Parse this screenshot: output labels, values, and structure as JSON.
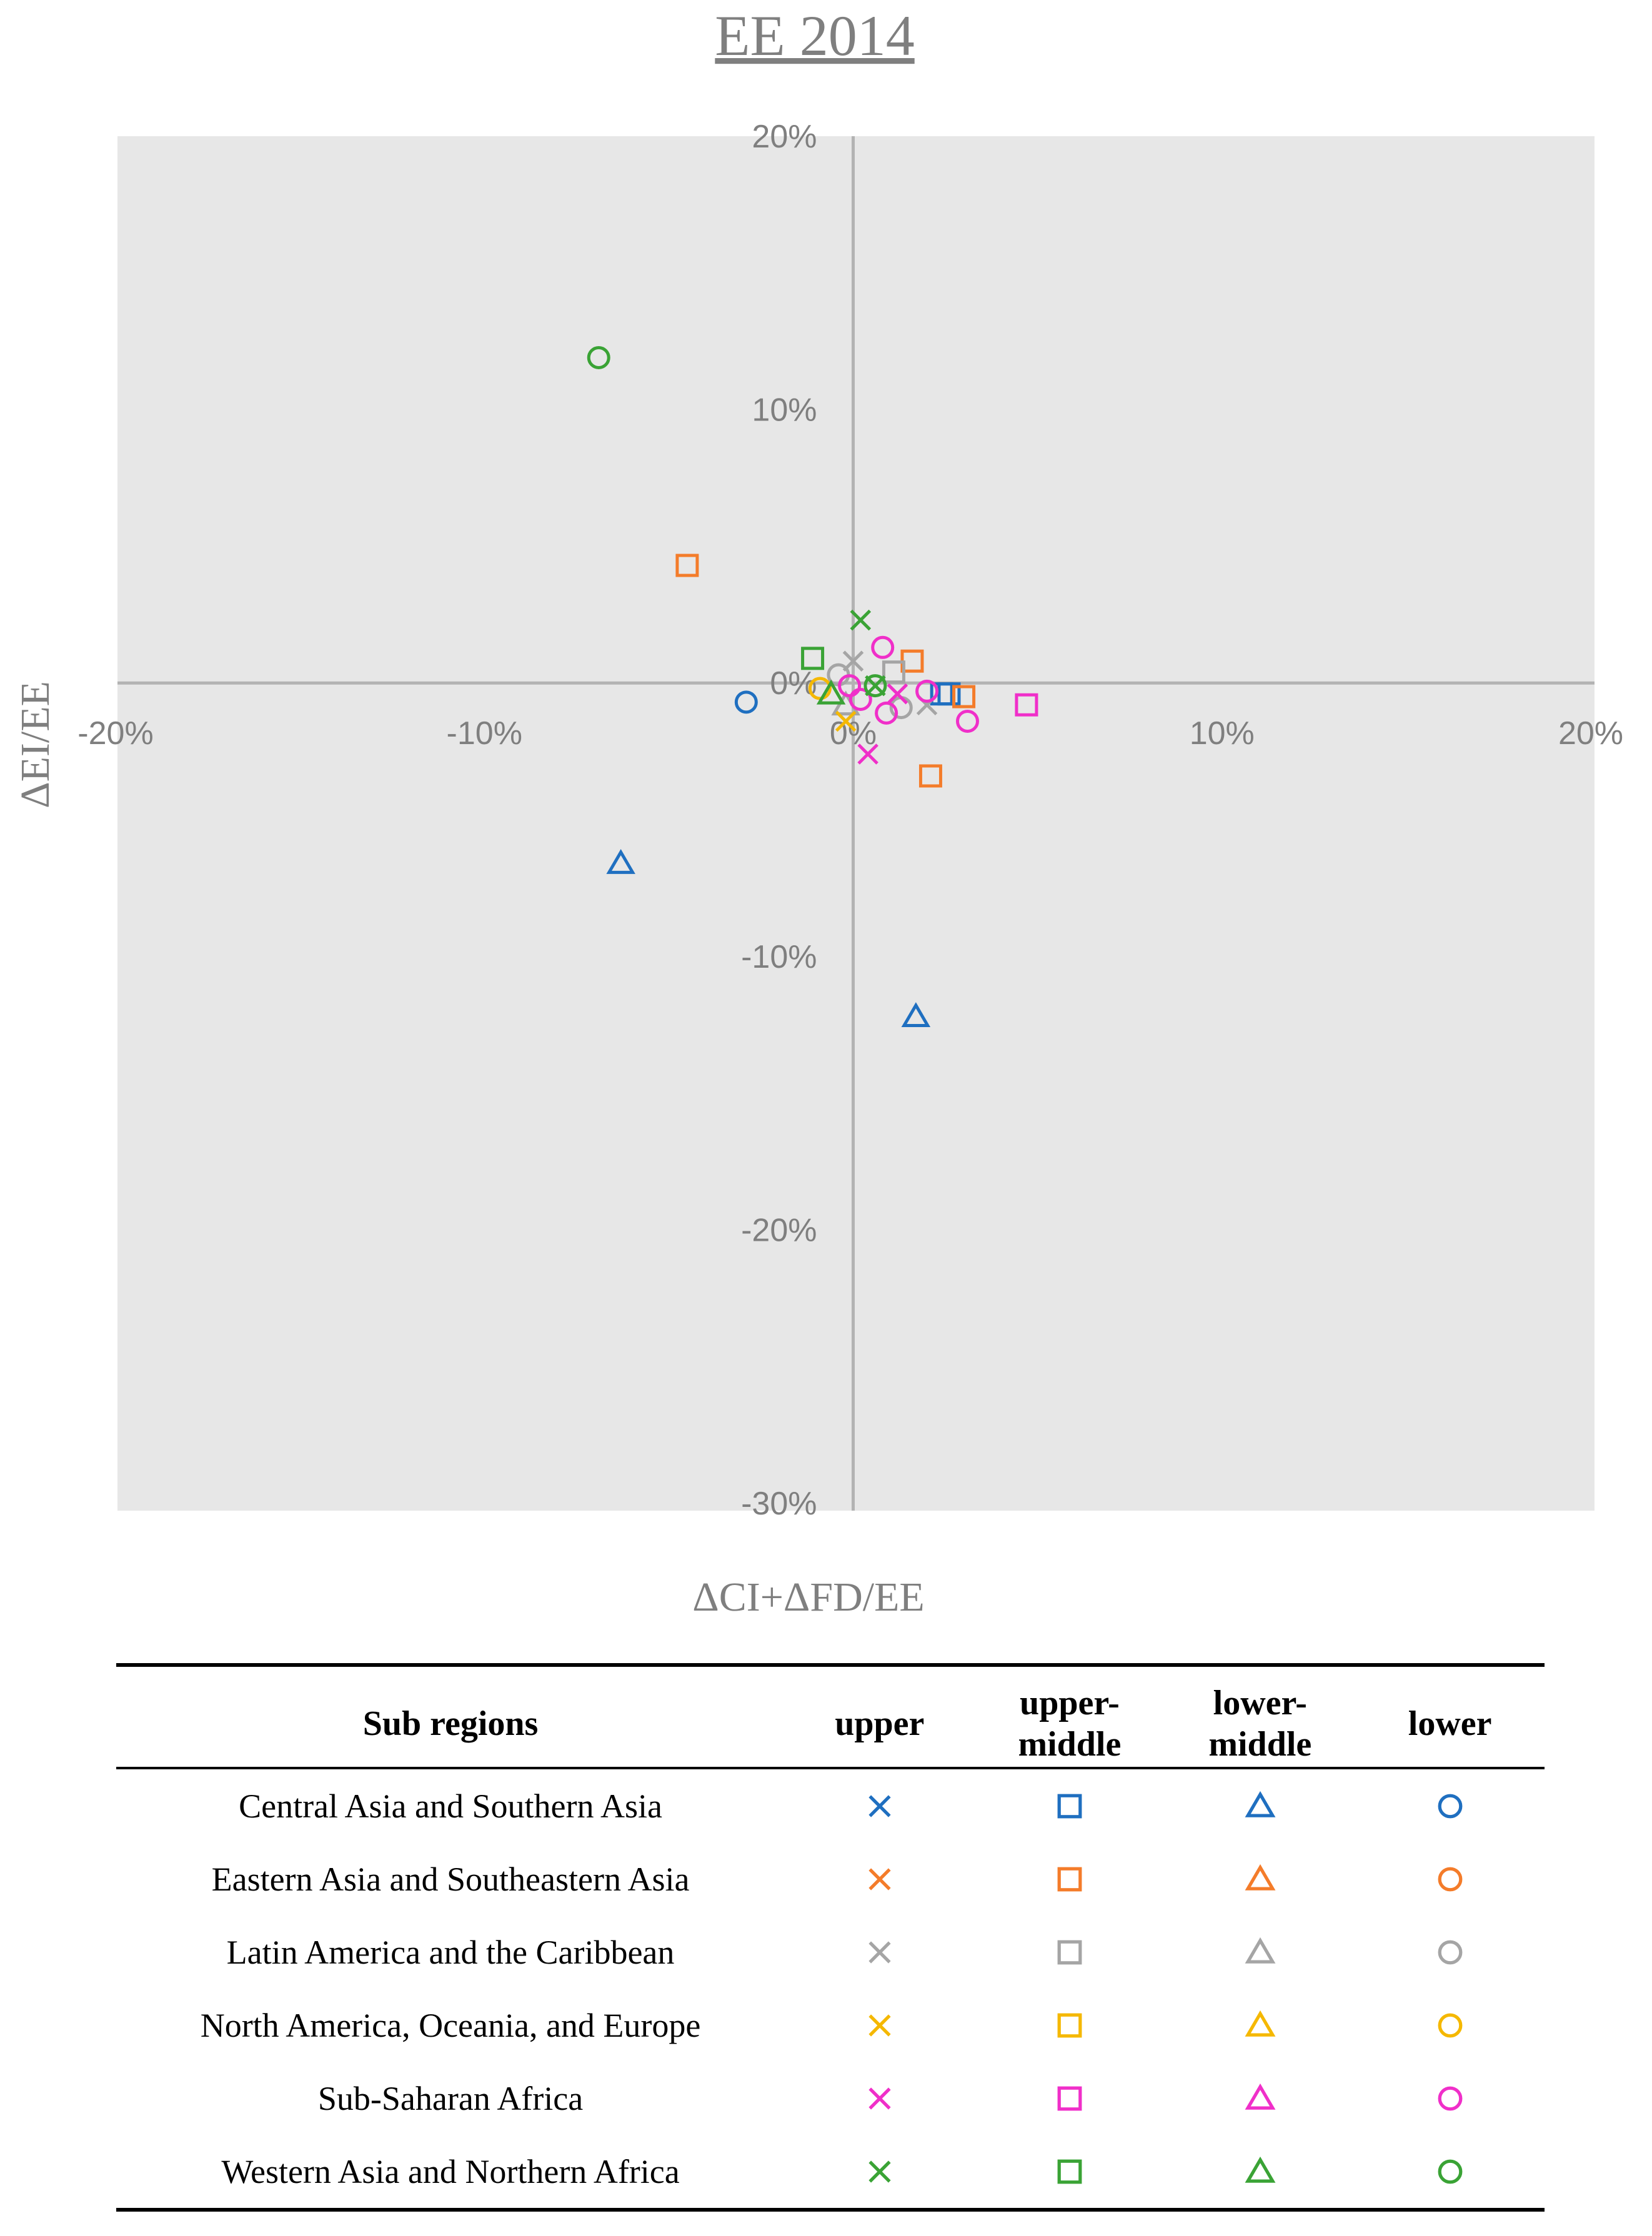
{
  "chart_data": {
    "type": "scatter",
    "title": "EE 2014",
    "xlabel": "ΔCI+ΔFD/EE",
    "ylabel": "ΔEI/EE",
    "xlim": [
      -20,
      20
    ],
    "ylim": [
      -30,
      20
    ],
    "x_ticks": [
      -20,
      -10,
      0,
      10,
      20
    ],
    "y_ticks": [
      20,
      10,
      0,
      -10,
      -20,
      -30
    ],
    "x_tick_labels": [
      "-20%",
      "-10%",
      "0%",
      "10%",
      "20%"
    ],
    "y_tick_labels": [
      "20%",
      "10%",
      "0%",
      "-10%",
      "-20%",
      "-30%"
    ],
    "grid": false,
    "plot_background": "#e7e7e7",
    "series": [
      {
        "region": "Central Asia and Southern Asia",
        "color": "#1f6fc0",
        "income": "upper-middle",
        "marker": "square",
        "points": [
          [
            2.4,
            -0.4
          ],
          [
            2.6,
            -0.4
          ]
        ]
      },
      {
        "region": "Central Asia and Southern Asia",
        "color": "#1f6fc0",
        "income": "lower-middle",
        "marker": "triangle",
        "points": [
          [
            -6.3,
            -6.6
          ],
          [
            1.7,
            -12.2
          ]
        ]
      },
      {
        "region": "Central Asia and Southern Asia",
        "color": "#1f6fc0",
        "income": "lower",
        "marker": "circle",
        "points": [
          [
            -2.9,
            -0.7
          ]
        ]
      },
      {
        "region": "Eastern Asia and Southeastern Asia",
        "color": "#f47c2a",
        "income": "upper-middle",
        "marker": "square",
        "points": [
          [
            -4.5,
            4.3
          ],
          [
            1.6,
            0.8
          ],
          [
            3.0,
            -0.5
          ],
          [
            2.1,
            -3.4
          ]
        ]
      },
      {
        "region": "Latin America and the Caribbean",
        "color": "#a5a5a5",
        "income": "upper",
        "marker": "x",
        "points": [
          [
            0.0,
            0.8
          ],
          [
            2.0,
            -0.8
          ]
        ]
      },
      {
        "region": "Latin America and the Caribbean",
        "color": "#a5a5a5",
        "income": "upper-middle",
        "marker": "square",
        "points": [
          [
            1.1,
            0.4
          ]
        ]
      },
      {
        "region": "Latin America and the Caribbean",
        "color": "#a5a5a5",
        "income": "lower-middle",
        "marker": "triangle",
        "points": [
          [
            -0.2,
            -0.8
          ]
        ]
      },
      {
        "region": "Latin America and the Caribbean",
        "color": "#a5a5a5",
        "income": "lower",
        "marker": "circle",
        "points": [
          [
            -0.4,
            0.3
          ],
          [
            1.3,
            -0.9
          ]
        ]
      },
      {
        "region": "North America, Oceania, and Europe",
        "color": "#f5b800",
        "income": "upper",
        "marker": "x",
        "points": [
          [
            -0.2,
            -1.4
          ]
        ]
      },
      {
        "region": "North America, Oceania, and Europe",
        "color": "#f5b800",
        "income": "lower",
        "marker": "circle",
        "points": [
          [
            -0.9,
            -0.2
          ]
        ]
      },
      {
        "region": "Sub-Saharan Africa",
        "color": "#f02fc9",
        "income": "upper",
        "marker": "x",
        "points": [
          [
            0.4,
            -2.6
          ],
          [
            1.2,
            -0.4
          ]
        ]
      },
      {
        "region": "Sub-Saharan Africa",
        "color": "#f02fc9",
        "income": "upper-middle",
        "marker": "square",
        "points": [
          [
            4.7,
            -0.8
          ]
        ]
      },
      {
        "region": "Sub-Saharan Africa",
        "color": "#f02fc9",
        "income": "lower",
        "marker": "circle",
        "points": [
          [
            0.8,
            1.3
          ],
          [
            -0.1,
            -0.1
          ],
          [
            0.2,
            -0.6
          ],
          [
            0.9,
            -1.1
          ],
          [
            2.0,
            -0.3
          ],
          [
            3.1,
            -1.4
          ]
        ]
      },
      {
        "region": "Western Asia and Northern Africa",
        "color": "#3aa335",
        "income": "upper",
        "marker": "x",
        "points": [
          [
            0.2,
            2.3
          ],
          [
            0.6,
            -0.1
          ]
        ]
      },
      {
        "region": "Western Asia and Northern Africa",
        "color": "#3aa335",
        "income": "upper-middle",
        "marker": "square",
        "points": [
          [
            -1.1,
            0.9
          ]
        ]
      },
      {
        "region": "Western Asia and Northern Africa",
        "color": "#3aa335",
        "income": "lower-middle",
        "marker": "triangle",
        "points": [
          [
            -0.6,
            -0.4
          ]
        ]
      },
      {
        "region": "Western Asia and Northern Africa",
        "color": "#3aa335",
        "income": "lower",
        "marker": "circle",
        "points": [
          [
            -6.9,
            11.9
          ],
          [
            0.6,
            -0.1
          ]
        ]
      }
    ]
  },
  "legend": {
    "header": {
      "region": "Sub regions",
      "upper": "upper",
      "upper_middle_1": "upper-",
      "upper_middle_2": "middle",
      "lower_middle_1": "lower-",
      "lower_middle_2": "middle",
      "lower": "lower"
    },
    "markers": [
      "x",
      "square",
      "triangle",
      "circle"
    ],
    "rows": [
      {
        "region": "Central Asia and Southern Asia",
        "color": "#1f6fc0"
      },
      {
        "region": "Eastern Asia and Southeastern Asia",
        "color": "#f47c2a"
      },
      {
        "region": "Latin America and the Caribbean",
        "color": "#a5a5a5"
      },
      {
        "region": "North America, Oceania, and Europe",
        "color": "#f5b800"
      },
      {
        "region": "Sub-Saharan Africa",
        "color": "#f02fc9"
      },
      {
        "region": "Western Asia and Northern Africa",
        "color": "#3aa335"
      }
    ]
  }
}
